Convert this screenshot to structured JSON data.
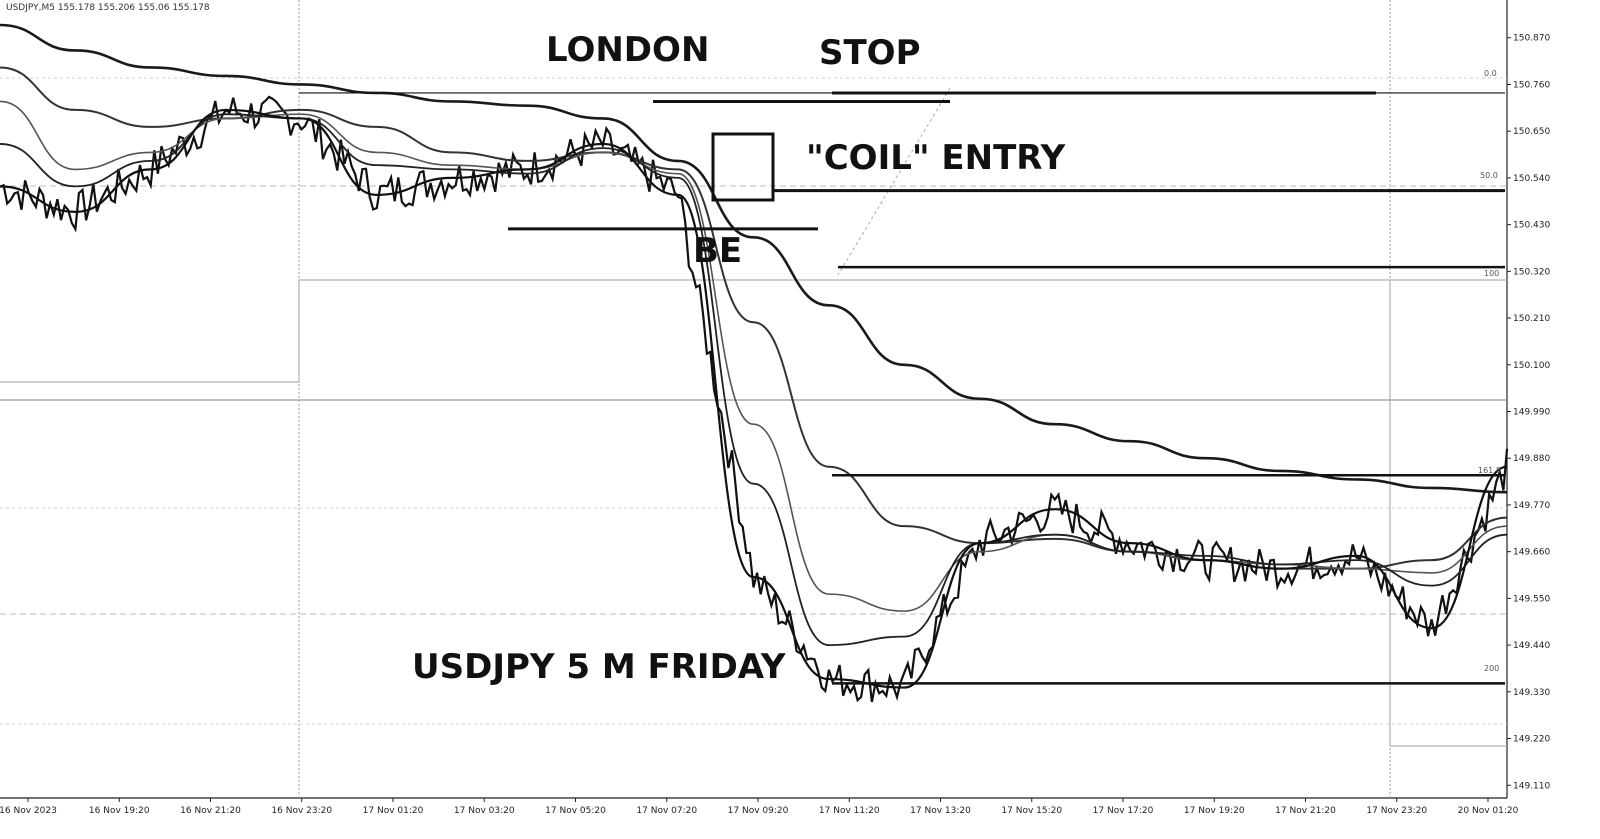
{
  "header_text": "USDJPY,M5  155.178 155.206 155.06 155.178",
  "annotations": {
    "london": "LONDON",
    "stop": "STOP",
    "coil_entry": "\"COIL\" ENTRY",
    "be": "BE",
    "caption": "USDJPY 5 M FRIDAY"
  },
  "fib_labels": [
    "0.0",
    "50.0",
    "100",
    "161.8",
    "200"
  ],
  "chart_data": {
    "type": "line",
    "title": "",
    "symbol": "USDJPY",
    "timeframe": "M5",
    "ylim": [
      149.08,
      150.94
    ],
    "y_ticks": [
      "150.870",
      "150.760",
      "150.650",
      "150.540",
      "150.430",
      "150.320",
      "150.210",
      "150.100",
      "149.990",
      "149.880",
      "149.770",
      "149.660",
      "149.550",
      "149.440",
      "149.330",
      "149.220",
      "149.110"
    ],
    "x_ticks": [
      "16 Nov 2023",
      "16 Nov 19:20",
      "16 Nov 21:20",
      "16 Nov 23:20",
      "17 Nov 01:20",
      "17 Nov 03:20",
      "17 Nov 05:20",
      "17 Nov 07:20",
      "17 Nov 09:20",
      "17 Nov 11:20",
      "17 Nov 13:20",
      "17 Nov 15:20",
      "17 Nov 17:20",
      "17 Nov 19:20",
      "17 Nov 21:20",
      "17 Nov 23:20",
      "20 Nov 01:20"
    ],
    "x_range": [
      0,
      100
    ],
    "levels": {
      "stop": 150.74,
      "london_high": 150.72,
      "coil_entry": 150.51,
      "be": 150.42,
      "fib_100": 150.33,
      "target_1": 149.84,
      "target_2": 149.35
    },
    "series": [
      {
        "x": [
          0,
          5,
          10,
          15,
          20,
          25,
          30,
          35,
          40,
          45,
          50,
          55,
          60,
          65,
          70,
          75,
          80,
          85,
          90,
          95,
          100
        ],
        "y": [
          150.9,
          150.84,
          150.8,
          150.78,
          150.76,
          150.74,
          150.72,
          150.71,
          150.68,
          150.58,
          150.4,
          150.24,
          150.1,
          150.02,
          149.96,
          149.92,
          149.88,
          149.85,
          149.83,
          149.81,
          149.8
        ]
      },
      {
        "x": [
          0,
          5,
          10,
          15,
          20,
          25,
          30,
          35,
          40,
          45,
          50,
          55,
          60,
          65,
          70,
          75,
          80,
          85,
          90,
          95,
          100
        ],
        "y": [
          150.8,
          150.7,
          150.66,
          150.68,
          150.7,
          150.66,
          150.6,
          150.58,
          150.6,
          150.56,
          150.2,
          149.86,
          149.72,
          149.68,
          149.69,
          149.66,
          149.64,
          149.62,
          149.62,
          149.64,
          149.74
        ]
      },
      {
        "x": [
          0,
          5,
          10,
          15,
          20,
          25,
          30,
          35,
          40,
          45,
          50,
          55,
          60,
          65,
          70,
          75,
          80,
          85,
          90,
          95,
          100
        ],
        "y": [
          150.72,
          150.56,
          150.6,
          150.68,
          150.69,
          150.6,
          150.57,
          150.56,
          150.6,
          150.55,
          149.96,
          149.56,
          149.52,
          149.66,
          149.7,
          149.66,
          149.64,
          149.63,
          149.62,
          149.61,
          149.72
        ]
      },
      {
        "x": [
          0,
          5,
          10,
          15,
          20,
          25,
          30,
          35,
          40,
          45,
          50,
          55,
          60,
          65,
          70,
          75,
          80,
          85,
          90,
          95,
          100
        ],
        "y": [
          150.62,
          150.52,
          150.58,
          150.69,
          150.68,
          150.57,
          150.56,
          150.55,
          150.61,
          150.54,
          149.82,
          149.44,
          149.46,
          149.68,
          149.7,
          149.66,
          149.65,
          149.63,
          149.64,
          149.58,
          149.7
        ]
      },
      {
        "x": [
          0,
          5,
          10,
          15,
          20,
          25,
          30,
          35,
          40,
          45,
          50,
          55,
          60,
          65,
          70,
          75,
          80,
          85,
          90,
          95,
          100
        ],
        "y": [
          150.52,
          150.46,
          150.56,
          150.7,
          150.68,
          150.5,
          150.54,
          150.56,
          150.62,
          150.5,
          149.6,
          149.36,
          149.34,
          149.68,
          149.76,
          149.68,
          149.64,
          149.62,
          149.65,
          149.48,
          149.86
        ]
      }
    ],
    "grid": false,
    "legend": "none"
  },
  "colors": {
    "line": "#111111",
    "grid": "#bdbdbd",
    "background": "#ffffff"
  }
}
